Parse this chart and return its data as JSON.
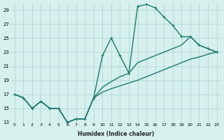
{
  "xlabel": "Humidex (Indice chaleur)",
  "bg_color": "#d6f0ee",
  "grid_color": "#b0d8d4",
  "line_color": "#1a7a6e",
  "xlim": [
    -0.5,
    23.5
  ],
  "ylim": [
    13,
    30
  ],
  "yticks": [
    13,
    15,
    17,
    19,
    21,
    23,
    25,
    27,
    29
  ],
  "xticks": [
    0,
    1,
    2,
    3,
    4,
    5,
    6,
    7,
    8,
    9,
    10,
    11,
    12,
    13,
    14,
    15,
    16,
    17,
    18,
    19,
    20,
    21,
    22,
    23
  ],
  "curve_main_x": [
    0,
    1,
    2,
    3,
    4,
    5,
    6,
    7,
    8,
    9,
    10,
    11,
    12,
    13,
    14,
    15,
    16,
    17,
    18,
    19,
    20,
    21,
    22,
    23
  ],
  "curve_main_y": [
    17.0,
    16.5,
    15.0,
    16.0,
    15.0,
    15.0,
    13.0,
    13.5,
    13.5,
    16.5,
    22.5,
    25.0,
    22.5,
    20.0,
    29.5,
    29.8,
    29.3,
    28.0,
    26.8,
    25.2,
    25.2,
    24.0,
    23.5,
    23.0
  ],
  "curve_mid_x": [
    0,
    1,
    2,
    3,
    4,
    5,
    6,
    7,
    8,
    9,
    10,
    11,
    12,
    13,
    14,
    15,
    16,
    17,
    18,
    19,
    20,
    21,
    22,
    23
  ],
  "curve_mid_y": [
    17.0,
    16.5,
    15.0,
    16.0,
    15.0,
    15.0,
    13.0,
    13.5,
    13.5,
    16.5,
    18.0,
    18.8,
    19.5,
    20.0,
    21.5,
    22.0,
    22.5,
    23.0,
    23.5,
    24.0,
    25.2,
    24.0,
    23.5,
    23.0
  ],
  "curve_low_x": [
    0,
    1,
    2,
    3,
    4,
    5,
    6,
    7,
    8,
    9,
    10,
    11,
    12,
    13,
    14,
    15,
    16,
    17,
    18,
    19,
    20,
    21,
    22,
    23
  ],
  "curve_low_y": [
    17.0,
    16.5,
    15.0,
    16.0,
    15.0,
    15.0,
    13.0,
    13.5,
    13.5,
    16.5,
    17.3,
    17.8,
    18.2,
    18.6,
    19.0,
    19.5,
    20.0,
    20.5,
    21.0,
    21.5,
    22.0,
    22.3,
    22.7,
    23.0
  ],
  "marker_x": [
    0,
    1,
    2,
    3,
    4,
    5,
    6,
    7,
    8,
    9,
    10,
    11,
    12,
    13,
    14,
    15,
    16,
    17,
    18,
    19,
    20,
    21,
    22,
    23
  ],
  "marker_y": [
    17.0,
    16.5,
    15.0,
    16.0,
    15.0,
    15.0,
    13.0,
    13.5,
    13.5,
    16.5,
    22.5,
    25.0,
    22.5,
    20.0,
    29.5,
    29.8,
    29.3,
    28.0,
    26.8,
    25.2,
    25.2,
    24.0,
    23.5,
    23.0
  ]
}
